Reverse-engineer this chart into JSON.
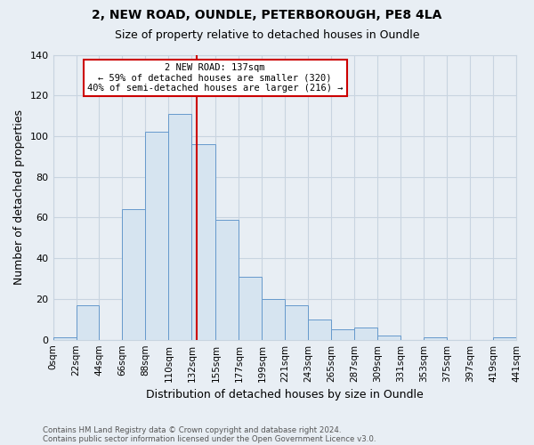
{
  "title": "2, NEW ROAD, OUNDLE, PETERBOROUGH, PE8 4LA",
  "subtitle": "Size of property relative to detached houses in Oundle",
  "xlabel": "Distribution of detached houses by size in Oundle",
  "ylabel": "Number of detached properties",
  "bar_color": "#d6e4f0",
  "bar_edge_color": "#6699cc",
  "background_color": "#e8eef4",
  "plot_bg_color": "#e8eef4",
  "grid_color": "#c8d4e0",
  "vline_color": "#cc0000",
  "annotation_lines": [
    "2 NEW ROAD: 137sqm",
    "← 59% of detached houses are smaller (320)",
    "40% of semi-detached houses are larger (216) →"
  ],
  "bin_edges": [
    0,
    22,
    44,
    66,
    88,
    110,
    132,
    155,
    177,
    199,
    221,
    243,
    265,
    287,
    309,
    331,
    353,
    375,
    397,
    419,
    441
  ],
  "bin_counts": [
    1,
    17,
    0,
    64,
    102,
    111,
    96,
    59,
    31,
    20,
    17,
    10,
    5,
    6,
    2,
    0,
    1,
    0,
    0,
    1
  ],
  "ylim": [
    0,
    140
  ],
  "yticks": [
    0,
    20,
    40,
    60,
    80,
    100,
    120,
    140
  ],
  "tick_labels": [
    "0sqm",
    "22sqm",
    "44sqm",
    "66sqm",
    "88sqm",
    "110sqm",
    "132sqm",
    "155sqm",
    "177sqm",
    "199sqm",
    "221sqm",
    "243sqm",
    "265sqm",
    "287sqm",
    "309sqm",
    "331sqm",
    "353sqm",
    "375sqm",
    "397sqm",
    "419sqm",
    "441sqm"
  ],
  "footer_line1": "Contains HM Land Registry data © Crown copyright and database right 2024.",
  "footer_line2": "Contains public sector information licensed under the Open Government Licence v3.0.",
  "vline_value": 137
}
